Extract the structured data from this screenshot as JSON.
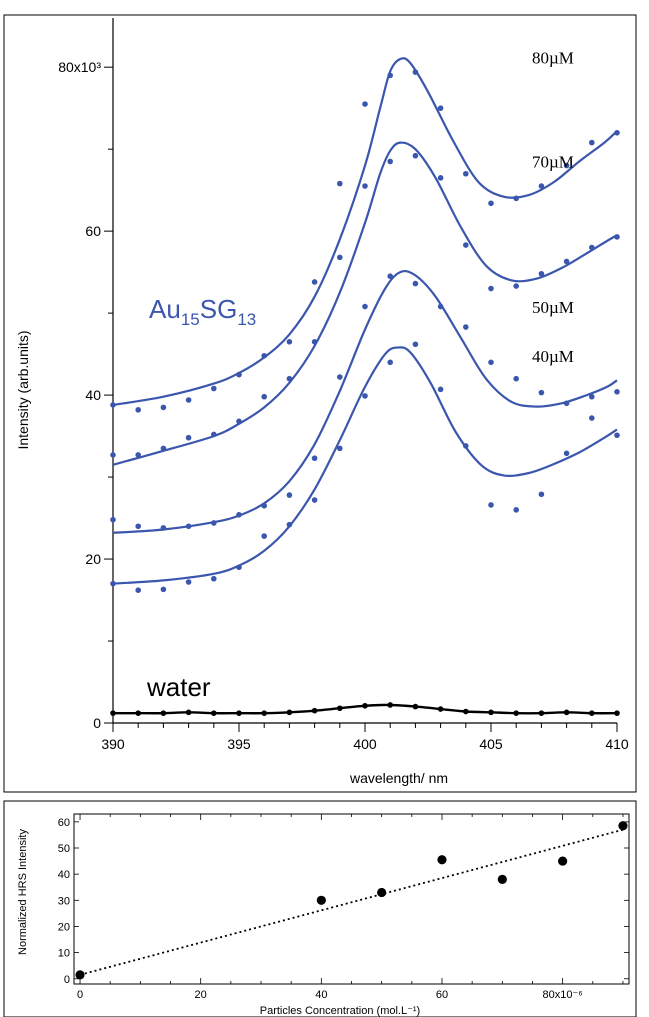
{
  "chart_data": [
    {
      "type": "scatter",
      "xlabel": "wavelength/ nm",
      "ylabel": "Intensity (arb.units)",
      "xlim": [
        390,
        410
      ],
      "ylim": [
        0,
        86
      ],
      "x_ticks": [
        "390",
        "395",
        "400",
        "405",
        "410"
      ],
      "y_ticks": [
        "0",
        "20",
        "40",
        "60",
        "80x10³"
      ],
      "y_tick_values": [
        0,
        20,
        40,
        60,
        80
      ],
      "y_unit_multiplier": 1000,
      "annotation": {
        "base": "Au",
        "sub1": "15",
        "mid": "SG",
        "sub2": "13"
      },
      "series_color": "#3b56ad",
      "water_color": "#000000",
      "x": [
        390,
        391,
        392,
        393,
        394,
        395,
        396,
        397,
        398,
        399,
        400,
        401,
        402,
        403,
        404,
        405,
        406,
        407,
        408,
        409,
        410
      ],
      "series": [
        {
          "name": "80µM",
          "points": [
            [
              390,
              38.8
            ],
            [
              391,
              38.2
            ],
            [
              392,
              38.5
            ],
            [
              393,
              39.4
            ],
            [
              394,
              40.8
            ],
            [
              395,
              42.5
            ],
            [
              396,
              44.8
            ],
            [
              397,
              46.5
            ],
            [
              398,
              53.8
            ],
            [
              399,
              65.8
            ],
            [
              400,
              75.5
            ],
            [
              401,
              79
            ],
            [
              402,
              79.4
            ],
            [
              403,
              75
            ],
            [
              404,
              67
            ],
            [
              405,
              63.4
            ],
            [
              406,
              64
            ],
            [
              407,
              65.5
            ],
            [
              408,
              68
            ],
            [
              409,
              70.8
            ],
            [
              410,
              72
            ]
          ],
          "fit": [
            [
              390,
              38.8
            ],
            [
              392,
              39.8
            ],
            [
              394,
              41.4
            ],
            [
              395,
              42.7
            ],
            [
              396,
              44.6
            ],
            [
              397,
              47.4
            ],
            [
              398,
              52
            ],
            [
              399,
              59
            ],
            [
              400,
              68
            ],
            [
              400.6,
              75
            ],
            [
              401,
              79.5
            ],
            [
              401.4,
              81
            ],
            [
              401.8,
              80.5
            ],
            [
              402.5,
              77
            ],
            [
              403.5,
              71
            ],
            [
              404.5,
              66
            ],
            [
              405.5,
              64.2
            ],
            [
              406.5,
              64.4
            ],
            [
              407.5,
              66
            ],
            [
              408.5,
              68.5
            ],
            [
              409.5,
              70.8
            ],
            [
              410,
              72.2
            ]
          ]
        },
        {
          "name": "70µM",
          "points": [
            [
              390,
              32.7
            ],
            [
              391,
              32.7
            ],
            [
              392,
              33.5
            ],
            [
              393,
              34.8
            ],
            [
              394,
              35.2
            ],
            [
              395,
              36.8
            ],
            [
              396,
              39.8
            ],
            [
              397,
              42
            ],
            [
              398,
              46.5
            ],
            [
              399,
              56.8
            ],
            [
              400,
              65.5
            ],
            [
              401,
              68.5
            ],
            [
              402,
              69.2
            ],
            [
              403,
              66.5
            ],
            [
              404,
              58.3
            ],
            [
              405,
              53
            ],
            [
              406,
              53.3
            ],
            [
              407,
              54.8
            ],
            [
              408,
              56.3
            ],
            [
              409,
              58
            ],
            [
              410,
              59.3
            ]
          ],
          "fit": [
            [
              390,
              31.5
            ],
            [
              392,
              33.2
            ],
            [
              394,
              35
            ],
            [
              395,
              36.5
            ],
            [
              396,
              38.5
            ],
            [
              397,
              41.5
            ],
            [
              398,
              46
            ],
            [
              399,
              52.5
            ],
            [
              400,
              61
            ],
            [
              400.6,
              67
            ],
            [
              401,
              69.8
            ],
            [
              401.4,
              70.8
            ],
            [
              402,
              70
            ],
            [
              402.8,
              66.5
            ],
            [
              403.8,
              60.5
            ],
            [
              404.8,
              55.8
            ],
            [
              405.8,
              54
            ],
            [
              406.8,
              54.2
            ],
            [
              407.8,
              55.5
            ],
            [
              408.8,
              57.3
            ],
            [
              409.6,
              58.8
            ],
            [
              410,
              59.5
            ]
          ]
        },
        {
          "name": "50µM",
          "points": [
            [
              390,
              24.8
            ],
            [
              391,
              24
            ],
            [
              392,
              23.8
            ],
            [
              393,
              24
            ],
            [
              394,
              24.4
            ],
            [
              395,
              25.4
            ],
            [
              396,
              26.5
            ],
            [
              397,
              27.8
            ],
            [
              398,
              32.3
            ],
            [
              399,
              42.2
            ],
            [
              400,
              50.8
            ],
            [
              401,
              54.5
            ],
            [
              402,
              53.6
            ],
            [
              403,
              50.8
            ],
            [
              404,
              48.3
            ],
            [
              405,
              44
            ],
            [
              406,
              42
            ],
            [
              407,
              40.3
            ],
            [
              408,
              39
            ],
            [
              409,
              39.8
            ],
            [
              410,
              40.4
            ]
          ],
          "fit": [
            [
              390,
              23.2
            ],
            [
              392,
              23.6
            ],
            [
              394,
              24.5
            ],
            [
              395,
              25.3
            ],
            [
              396,
              26.8
            ],
            [
              397,
              29.5
            ],
            [
              398,
              34
            ],
            [
              399,
              40.5
            ],
            [
              400,
              48
            ],
            [
              400.8,
              53
            ],
            [
              401.4,
              55
            ],
            [
              402,
              54.6
            ],
            [
              402.8,
              52
            ],
            [
              403.8,
              47
            ],
            [
              404.8,
              42
            ],
            [
              405.8,
              39.2
            ],
            [
              406.8,
              38.6
            ],
            [
              407.8,
              39
            ],
            [
              408.8,
              40
            ],
            [
              409.6,
              41
            ],
            [
              410,
              41.8
            ]
          ]
        },
        {
          "name": "40µM",
          "points": [
            [
              390,
              17
            ],
            [
              391,
              16.2
            ],
            [
              392,
              16.3
            ],
            [
              393,
              17.2
            ],
            [
              394,
              17.6
            ],
            [
              395,
              19
            ],
            [
              396,
              22.8
            ],
            [
              397,
              24.2
            ],
            [
              398,
              27.2
            ],
            [
              399,
              33.5
            ],
            [
              400,
              39.9
            ],
            [
              401,
              44
            ],
            [
              402,
              46.2
            ],
            [
              403,
              40.7
            ],
            [
              404,
              33.8
            ],
            [
              405,
              26.6
            ],
            [
              406,
              26
            ],
            [
              407,
              27.9
            ],
            [
              408,
              32.9
            ],
            [
              409,
              37.2
            ],
            [
              410,
              35.1
            ]
          ],
          "fit": [
            [
              390,
              17
            ],
            [
              392,
              17.4
            ],
            [
              394,
              18.2
            ],
            [
              395,
              19.2
            ],
            [
              396,
              21
            ],
            [
              397,
              24
            ],
            [
              398,
              28.5
            ],
            [
              399,
              34.5
            ],
            [
              400,
              41
            ],
            [
              400.8,
              45
            ],
            [
              401.3,
              45.8
            ],
            [
              401.8,
              45.2
            ],
            [
              402.6,
              41.5
            ],
            [
              403.6,
              35.5
            ],
            [
              404.6,
              31.5
            ],
            [
              405.5,
              30.2
            ],
            [
              406.5,
              30.5
            ],
            [
              407.5,
              31.6
            ],
            [
              408.5,
              33
            ],
            [
              409.5,
              34.8
            ],
            [
              410,
              35.8
            ]
          ]
        },
        {
          "name": "water",
          "points": [
            [
              390,
              1.2
            ],
            [
              391,
              1.2
            ],
            [
              392,
              1.2
            ],
            [
              393,
              1.3
            ],
            [
              394,
              1.2
            ],
            [
              395,
              1.2
            ],
            [
              396,
              1.2
            ],
            [
              397,
              1.3
            ],
            [
              398,
              1.5
            ],
            [
              399,
              1.8
            ],
            [
              400,
              2.1
            ],
            [
              401,
              2.2
            ],
            [
              402,
              2
            ],
            [
              403,
              1.7
            ],
            [
              404,
              1.4
            ],
            [
              405,
              1.3
            ],
            [
              406,
              1.2
            ],
            [
              407,
              1.2
            ],
            [
              408,
              1.3
            ],
            [
              409,
              1.2
            ],
            [
              410,
              1.2
            ]
          ]
        }
      ]
    },
    {
      "type": "scatter",
      "xlabel": "Particles Concentration (mol.L⁻¹)",
      "ylabel": "Normalized HRS Intensity",
      "xlim": [
        -1,
        91
      ],
      "ylim": [
        -2,
        63
      ],
      "x_ticks": [
        "0",
        "20",
        "40",
        "60",
        "80x10⁻⁶"
      ],
      "x_tick_values": [
        0,
        20,
        40,
        60,
        80
      ],
      "x_unit_multiplier": 1e-06,
      "y_ticks": [
        "0",
        "10",
        "20",
        "30",
        "40",
        "50",
        "60"
      ],
      "y_tick_values": [
        0,
        10,
        20,
        30,
        40,
        50,
        60
      ],
      "points": [
        [
          0,
          1.5
        ],
        [
          40,
          30
        ],
        [
          50,
          33
        ],
        [
          60,
          45.5
        ],
        [
          70,
          38
        ],
        [
          80,
          45
        ],
        [
          90,
          58.5
        ]
      ],
      "fit_line": [
        [
          0,
          1.5
        ],
        [
          90,
          57
        ]
      ]
    }
  ]
}
